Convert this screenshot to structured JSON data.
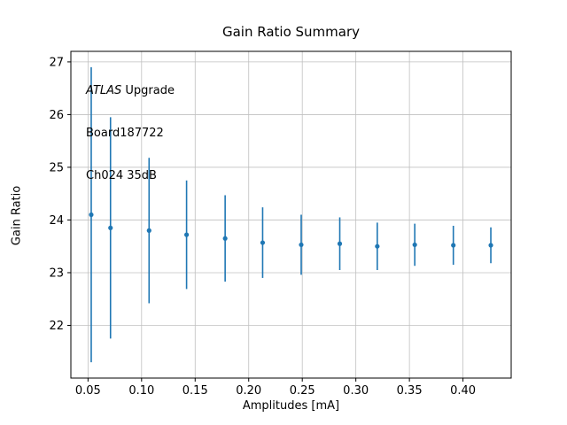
{
  "title": "Gain Ratio Summary",
  "annotation": {
    "line1_italic": "ATLAS",
    "line1_rest": " Upgrade",
    "line2": "Board187722",
    "line3": "Ch024 35dB"
  },
  "chart_data": {
    "type": "scatter",
    "title": "Gain Ratio Summary",
    "xlabel": "Amplitudes [mA]",
    "ylabel": "Gain Ratio",
    "xlim": [
      0.034,
      0.445
    ],
    "ylim": [
      21.0,
      27.2
    ],
    "xticks": [
      0.05,
      0.1,
      0.15,
      0.2,
      0.25,
      0.3,
      0.35,
      0.4
    ],
    "xtick_labels": [
      "0.05",
      "0.10",
      "0.15",
      "0.20",
      "0.25",
      "0.30",
      "0.35",
      "0.40"
    ],
    "yticks": [
      22,
      23,
      24,
      25,
      26,
      27
    ],
    "ytick_labels": [
      "22",
      "23",
      "24",
      "25",
      "26",
      "27"
    ],
    "grid": true,
    "legend": "none",
    "marker_color": "#1f77b4",
    "grid_color": "#c0c0c0",
    "axis_color": "#000000",
    "points": [
      {
        "x": 0.053,
        "y": 24.1,
        "err": 2.8
      },
      {
        "x": 0.071,
        "y": 23.85,
        "err": 2.1
      },
      {
        "x": 0.107,
        "y": 23.8,
        "err": 1.38
      },
      {
        "x": 0.142,
        "y": 23.72,
        "err": 1.03
      },
      {
        "x": 0.178,
        "y": 23.65,
        "err": 0.82
      },
      {
        "x": 0.213,
        "y": 23.57,
        "err": 0.67
      },
      {
        "x": 0.249,
        "y": 23.53,
        "err": 0.57
      },
      {
        "x": 0.285,
        "y": 23.55,
        "err": 0.5
      },
      {
        "x": 0.32,
        "y": 23.5,
        "err": 0.45
      },
      {
        "x": 0.355,
        "y": 23.53,
        "err": 0.4
      },
      {
        "x": 0.391,
        "y": 23.52,
        "err": 0.37
      },
      {
        "x": 0.426,
        "y": 23.52,
        "err": 0.34
      }
    ]
  }
}
